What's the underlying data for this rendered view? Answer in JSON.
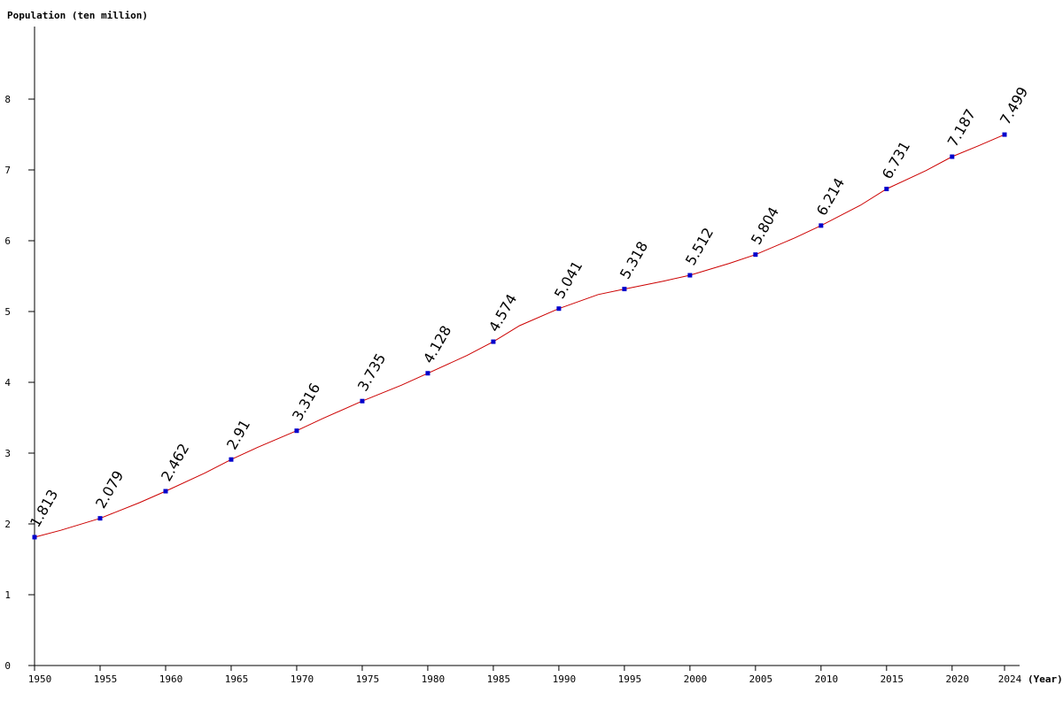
{
  "chart_data": {
    "type": "line",
    "title": "",
    "ylabel": "Population (ten million)",
    "xlabel": "(Year)",
    "ylim": [
      0,
      9
    ],
    "xlim": [
      1950,
      2024
    ],
    "yticks": [
      "0",
      "1",
      "2",
      "3",
      "4",
      "5",
      "6",
      "7",
      "8"
    ],
    "xticks": [
      "1950",
      "1955",
      "1960",
      "1965",
      "1970",
      "1975",
      "1980",
      "1985",
      "1990",
      "1995",
      "2000",
      "2005",
      "2010",
      "2015",
      "2020",
      "2024"
    ],
    "grid": false,
    "colors": {
      "line": "#cc0000",
      "marker": "#0000cc",
      "axis": "#000000"
    },
    "series": [
      {
        "x": [
          1950,
          1952,
          1955,
          1958,
          1960,
          1963,
          1965,
          1967,
          1970,
          1972,
          1975,
          1978,
          1980,
          1983,
          1985,
          1987,
          1990,
          1993,
          1995,
          1998,
          2000,
          2003,
          2005,
          2008,
          2010,
          2013,
          2015,
          2018,
          2020,
          2022,
          2024
        ],
        "values": [
          1.813,
          1.91,
          2.079,
          2.3,
          2.462,
          2.72,
          2.91,
          3.08,
          3.316,
          3.49,
          3.735,
          3.96,
          4.128,
          4.38,
          4.574,
          4.8,
          5.041,
          5.24,
          5.318,
          5.43,
          5.512,
          5.68,
          5.804,
          6.04,
          6.214,
          6.5,
          6.731,
          6.99,
          7.187,
          7.34,
          7.499
        ]
      }
    ],
    "points": [
      {
        "x": 1950,
        "y": 1.813,
        "label": "1.813"
      },
      {
        "x": 1955,
        "y": 2.079,
        "label": "2.079"
      },
      {
        "x": 1960,
        "y": 2.462,
        "label": "2.462"
      },
      {
        "x": 1965,
        "y": 2.91,
        "label": "2.91"
      },
      {
        "x": 1970,
        "y": 3.316,
        "label": "3.316"
      },
      {
        "x": 1975,
        "y": 3.735,
        "label": "3.735"
      },
      {
        "x": 1980,
        "y": 4.128,
        "label": "4.128"
      },
      {
        "x": 1985,
        "y": 4.574,
        "label": "4.574"
      },
      {
        "x": 1990,
        "y": 5.041,
        "label": "5.041"
      },
      {
        "x": 1995,
        "y": 5.318,
        "label": "5.318"
      },
      {
        "x": 2000,
        "y": 5.512,
        "label": "5.512"
      },
      {
        "x": 2005,
        "y": 5.804,
        "label": "5.804"
      },
      {
        "x": 2010,
        "y": 6.214,
        "label": "6.214"
      },
      {
        "x": 2015,
        "y": 6.731,
        "label": "6.731"
      },
      {
        "x": 2020,
        "y": 7.187,
        "label": "7.187"
      },
      {
        "x": 2024,
        "y": 7.499,
        "label": "7.499"
      }
    ]
  }
}
